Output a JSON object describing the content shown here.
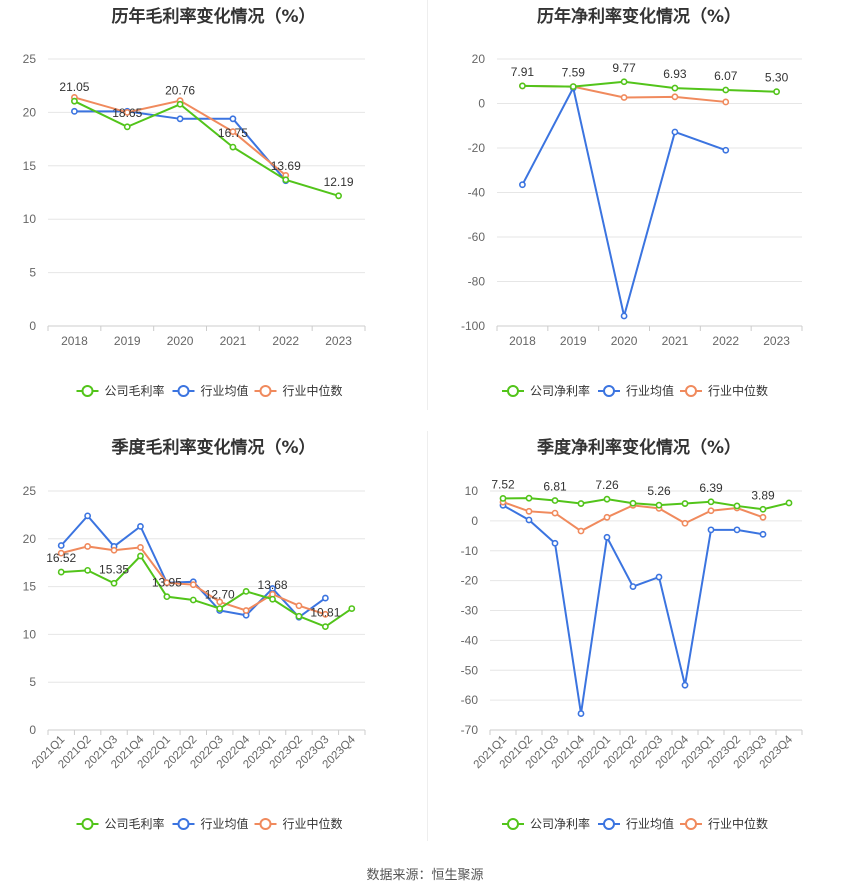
{
  "source_label": "数据来源：恒生聚源",
  "legend_labels": {
    "gross": [
      "公司毛利率",
      "行业均值",
      "行业中位数"
    ],
    "net": [
      "公司净利率",
      "行业均值",
      "行业中位数"
    ]
  },
  "colors": {
    "company": "#52c41a",
    "industry_avg": "#3b74e0",
    "industry_median": "#f08a5d"
  },
  "chart_data": [
    {
      "type": "line",
      "title": "历年毛利率变化情况（%）",
      "x": [
        "2018",
        "2019",
        "2020",
        "2021",
        "2022",
        "2023"
      ],
      "ylim": [
        0,
        25
      ],
      "yticks": [
        0,
        5,
        10,
        15,
        20,
        25
      ],
      "grid": true,
      "legend_position": "bottom",
      "series": [
        {
          "name": "公司毛利率",
          "values": [
            21.05,
            18.65,
            20.76,
            16.75,
            13.69,
            12.19
          ]
        },
        {
          "name": "行业均值",
          "values": [
            20.1,
            20.1,
            19.4,
            19.4,
            13.6,
            null
          ]
        },
        {
          "name": "行业中位数",
          "values": [
            21.4,
            20.0,
            21.1,
            18.2,
            14.1,
            null
          ]
        }
      ],
      "data_labels": [
        "21.05",
        "18.65",
        "20.76",
        "16.75",
        "13.69",
        "12.19"
      ]
    },
    {
      "type": "line",
      "title": "历年净利率变化情况（%）",
      "x": [
        "2018",
        "2019",
        "2020",
        "2021",
        "2022",
        "2023"
      ],
      "ylim": [
        -100,
        20
      ],
      "yticks": [
        -100,
        -80,
        -60,
        -40,
        -20,
        0,
        20
      ],
      "grid": true,
      "legend_position": "bottom",
      "series": [
        {
          "name": "公司净利率",
          "values": [
            7.91,
            7.59,
            9.77,
            6.93,
            6.07,
            5.3
          ]
        },
        {
          "name": "行业均值",
          "values": [
            -36.5,
            7.0,
            -95.5,
            -12.8,
            -21.0,
            null
          ]
        },
        {
          "name": "行业中位数",
          "values": [
            7.9,
            7.6,
            2.7,
            3.0,
            0.7,
            null
          ]
        }
      ],
      "data_labels": [
        "7.91",
        "7.59",
        "9.77",
        "6.93",
        "6.07",
        "5.30"
      ]
    },
    {
      "type": "line",
      "title": "季度毛利率变化情况（%）",
      "x": [
        "2021Q1",
        "2021Q2",
        "2021Q3",
        "2021Q4",
        "2022Q1",
        "2022Q2",
        "2022Q3",
        "2022Q4",
        "2023Q1",
        "2023Q2",
        "2023Q3",
        "2023Q4"
      ],
      "ylim": [
        0,
        25
      ],
      "yticks": [
        0,
        5,
        10,
        15,
        20,
        25
      ],
      "grid": true,
      "legend_position": "bottom",
      "series": [
        {
          "name": "公司毛利率",
          "values": [
            16.52,
            16.7,
            15.35,
            18.2,
            13.95,
            13.6,
            12.7,
            14.5,
            13.68,
            11.9,
            10.81,
            12.7
          ]
        },
        {
          "name": "行业均值",
          "values": [
            19.3,
            22.4,
            19.2,
            21.3,
            15.4,
            15.5,
            12.5,
            12.0,
            14.8,
            11.8,
            13.8,
            null
          ]
        },
        {
          "name": "行业中位数",
          "values": [
            18.5,
            19.2,
            18.8,
            19.1,
            15.4,
            15.2,
            13.4,
            12.5,
            14.2,
            13.0,
            12.1,
            null
          ]
        }
      ],
      "data_labels": [
        "16.52",
        null,
        "15.35",
        null,
        "13.95",
        null,
        "12.70",
        null,
        "13.68",
        null,
        "10.81",
        null
      ]
    },
    {
      "type": "line",
      "title": "季度净利率变化情况（%）",
      "x": [
        "2021Q1",
        "2021Q2",
        "2021Q3",
        "2021Q4",
        "2022Q1",
        "2022Q2",
        "2022Q3",
        "2022Q4",
        "2023Q1",
        "2023Q2",
        "2023Q3",
        "2023Q4"
      ],
      "ylim": [
        -70,
        10
      ],
      "yticks": [
        -70,
        -60,
        -50,
        -40,
        -30,
        -20,
        -10,
        0,
        10
      ],
      "grid": true,
      "legend_position": "bottom",
      "series": [
        {
          "name": "公司净利率",
          "values": [
            7.52,
            7.6,
            6.81,
            5.8,
            7.26,
            5.9,
            5.26,
            5.8,
            6.39,
            5.0,
            3.89,
            6.0
          ]
        },
        {
          "name": "行业均值",
          "values": [
            5.2,
            0.3,
            -7.5,
            -64.5,
            -5.5,
            -22.0,
            -18.8,
            -55.0,
            -3.0,
            -3.0,
            -4.5,
            null
          ]
        },
        {
          "name": "行业中位数",
          "values": [
            6.3,
            3.2,
            2.6,
            -3.4,
            1.2,
            5.2,
            4.2,
            -0.8,
            3.4,
            4.3,
            1.2,
            null
          ]
        }
      ],
      "data_labels": [
        "7.52",
        null,
        "6.81",
        null,
        "7.26",
        null,
        "5.26",
        null,
        "6.39",
        null,
        "3.89",
        null
      ]
    }
  ]
}
